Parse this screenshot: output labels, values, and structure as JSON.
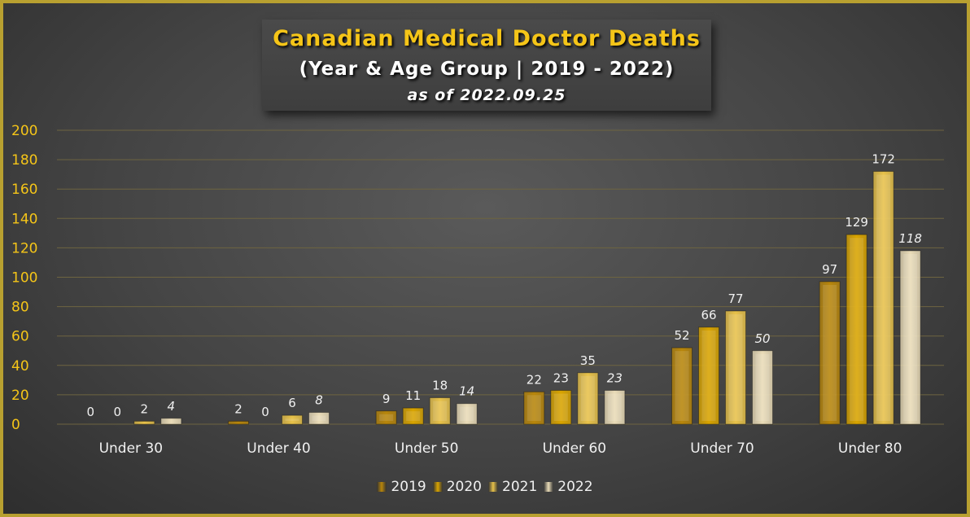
{
  "title": "Canadian Medical Doctor Deaths",
  "subtitle": "(Year & Age Group | 2019 - 2022)",
  "note": "as of 2022.09.25",
  "colors": {
    "accent": "#f5c518",
    "grid": "#6e6440",
    "label": "#f0f0f0"
  },
  "chart_data": {
    "type": "bar",
    "title": "Canadian Medical Doctor Deaths",
    "xlabel": "",
    "ylabel": "",
    "ylim": [
      0,
      200
    ],
    "yticks": [
      "0",
      "20",
      "40",
      "60",
      "80",
      "100",
      "120",
      "140",
      "160",
      "180",
      "200"
    ],
    "categories": [
      "Under 30",
      "Under 40",
      "Under 50",
      "Under 60",
      "Under 70",
      "Under 80"
    ],
    "legend_position": "bottom",
    "series": [
      {
        "name": "2019",
        "values": [
          0,
          2,
          9,
          22,
          52,
          97
        ],
        "color": "#b8860b",
        "italic_labels": false
      },
      {
        "name": "2020",
        "values": [
          0,
          0,
          11,
          23,
          66,
          129
        ],
        "color": "#d9a400",
        "italic_labels": false
      },
      {
        "name": "2021",
        "values": [
          2,
          6,
          18,
          35,
          77,
          172
        ],
        "color": "#e8c24a",
        "italic_labels": false
      },
      {
        "name": "2022",
        "values": [
          4,
          8,
          14,
          23,
          50,
          118
        ],
        "color": "#eadcb8",
        "italic_labels": true
      }
    ]
  }
}
